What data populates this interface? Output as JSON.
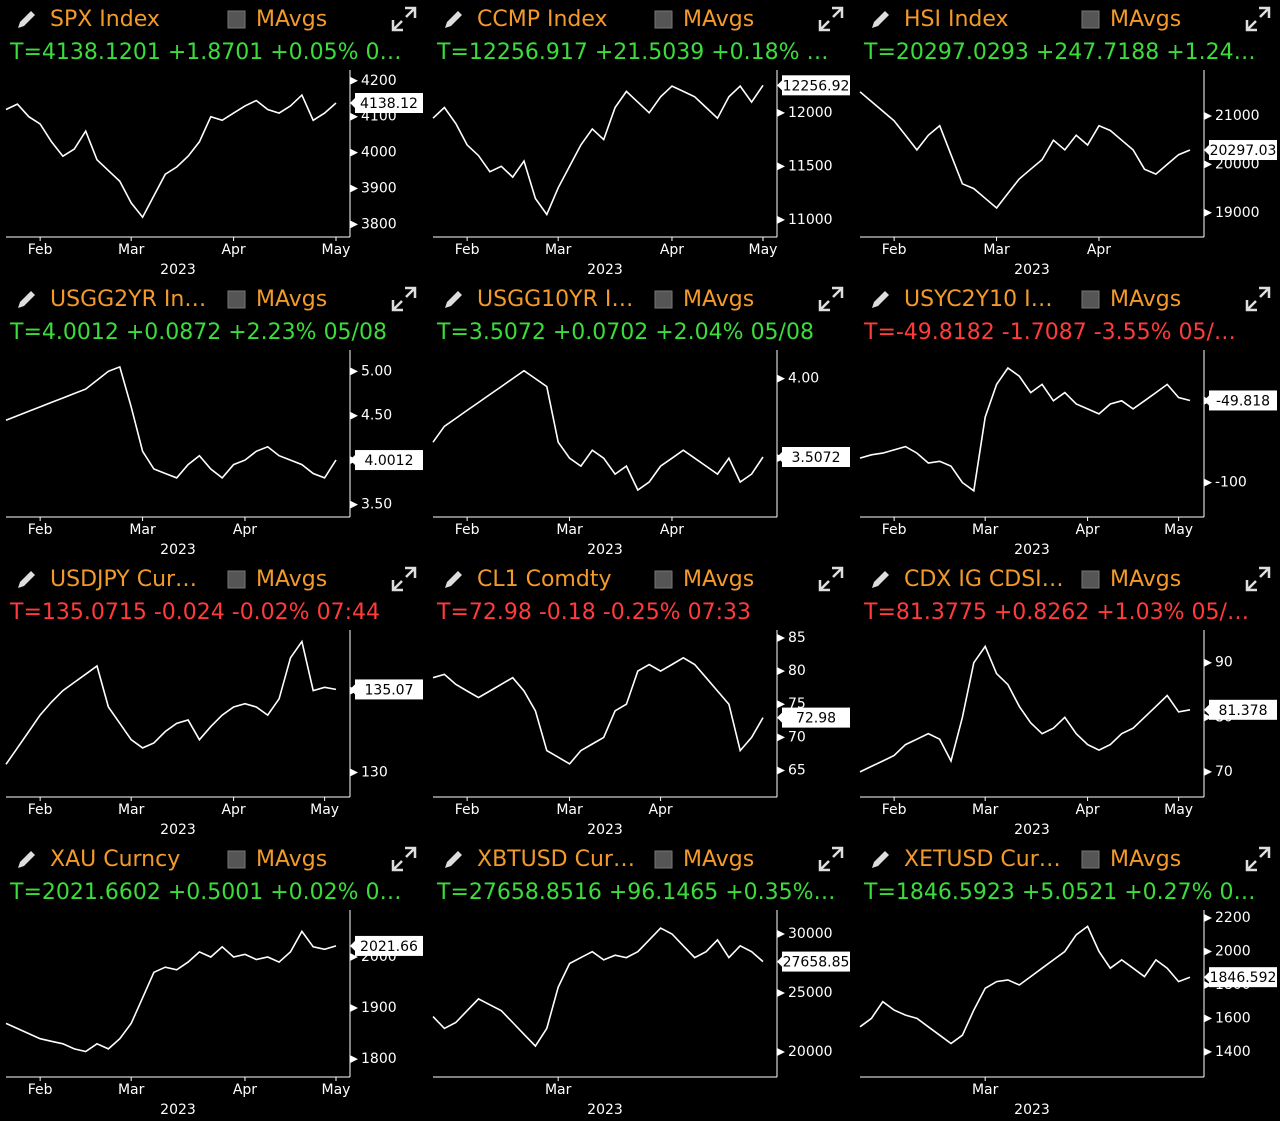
{
  "chart_data": [
    {
      "type": "line",
      "title": "SPX Index",
      "legend": "MAvgs",
      "quote": "T=4138.1201 +1.8701 +0.05% 0…",
      "quote_color": "#3ddc3d",
      "color": "#ffffff",
      "x_label": "2023",
      "categories": [
        null,
        null,
        null,
        "Feb",
        null,
        null,
        null,
        null,
        null,
        null,
        null,
        "Mar",
        null,
        null,
        null,
        null,
        null,
        null,
        null,
        null,
        "Apr",
        null,
        null,
        null,
        null,
        null,
        null,
        null,
        null,
        "May"
      ],
      "values": [
        4120,
        4135,
        4100,
        4080,
        4030,
        3990,
        4010,
        4060,
        3980,
        3950,
        3920,
        3860,
        3820,
        3880,
        3940,
        3960,
        3990,
        4030,
        4100,
        4090,
        4110,
        4130,
        4145,
        4120,
        4110,
        4130,
        4160,
        4090,
        4110,
        4138.12
      ],
      "ylim": [
        3765,
        4230
      ],
      "yticks": [
        3800,
        3900,
        4000,
        4100,
        4200
      ]
    },
    {
      "type": "line",
      "title": "CCMP Index",
      "legend": "MAvgs",
      "quote": "T=12256.917 +21.5039 +0.18% …",
      "quote_color": "#3ddc3d",
      "color": "#ffffff",
      "x_label": "2023",
      "categories": [
        null,
        null,
        null,
        "Feb",
        null,
        null,
        null,
        null,
        null,
        null,
        null,
        "Mar",
        null,
        null,
        null,
        null,
        null,
        null,
        null,
        null,
        null,
        "Apr",
        null,
        null,
        null,
        null,
        null,
        null,
        null,
        "May"
      ],
      "values": [
        11950,
        12050,
        11900,
        11700,
        11600,
        11450,
        11500,
        11400,
        11550,
        11200,
        11050,
        11300,
        11500,
        11700,
        11850,
        11750,
        12050,
        12200,
        12100,
        12000,
        12150,
        12250,
        12200,
        12150,
        12050,
        11950,
        12150,
        12250,
        12100,
        12256.92
      ],
      "ylim": [
        10840,
        12400
      ],
      "yticks": [
        11000,
        11500,
        12000
      ]
    },
    {
      "type": "line",
      "title": "HSI Index",
      "legend": "MAvgs",
      "quote": "T=20297.0293 +247.7188 +1.24…",
      "quote_color": "#3ddc3d",
      "color": "#ffffff",
      "x_label": "2023",
      "categories": [
        null,
        null,
        null,
        "Feb",
        null,
        null,
        null,
        null,
        null,
        null,
        null,
        null,
        "Mar",
        null,
        null,
        null,
        null,
        null,
        null,
        null,
        null,
        "Apr",
        null,
        null,
        null,
        null,
        null,
        null,
        null,
        null
      ],
      "values": [
        21500,
        21300,
        21100,
        20900,
        20600,
        20300,
        20600,
        20800,
        20200,
        19600,
        19500,
        19300,
        19100,
        19400,
        19700,
        19900,
        20100,
        20500,
        20300,
        20600,
        20400,
        20800,
        20700,
        20500,
        20300,
        19900,
        19800,
        20000,
        20200,
        20297.03
      ],
      "ylim": [
        18500,
        21950
      ],
      "yticks": [
        19000,
        20000,
        21000
      ]
    },
    {
      "type": "line",
      "title": "USGG2YR In…",
      "legend": "MAvgs",
      "quote": "T=4.0012 +0.0872 +2.23% 05/08",
      "quote_color": "#3ddc3d",
      "color": "#ffffff",
      "x_label": "2023",
      "categories": [
        null,
        null,
        null,
        "Feb",
        null,
        null,
        null,
        null,
        null,
        null,
        null,
        null,
        "Mar",
        null,
        null,
        null,
        null,
        null,
        null,
        null,
        null,
        "Apr",
        null,
        null,
        null,
        null,
        null,
        null,
        null,
        null
      ],
      "values": [
        4.45,
        4.5,
        4.55,
        4.6,
        4.65,
        4.7,
        4.75,
        4.8,
        4.9,
        5.0,
        5.05,
        4.6,
        4.1,
        3.9,
        3.85,
        3.8,
        3.95,
        4.05,
        3.9,
        3.8,
        3.95,
        4.0,
        4.1,
        4.15,
        4.05,
        4.0,
        3.95,
        3.85,
        3.8,
        4.0012
      ],
      "ylim": [
        3.36,
        5.24
      ],
      "yticks": [
        {
          "value": 3.5,
          "label": "3.50"
        },
        {
          "value": 4,
          "label": "4.00"
        },
        {
          "value": 4.5,
          "label": "4.50"
        },
        {
          "value": 5,
          "label": "5.00"
        }
      ]
    },
    {
      "type": "line",
      "title": "USGG10YR I…",
      "legend": "MAvgs",
      "quote": "T=3.5072 +0.0702 +2.04% 05/08",
      "quote_color": "#3ddc3d",
      "color": "#ffffff",
      "x_label": "2023",
      "categories": [
        null,
        null,
        null,
        "Feb",
        null,
        null,
        null,
        null,
        null,
        null,
        null,
        null,
        "Mar",
        null,
        null,
        null,
        null,
        null,
        null,
        null,
        null,
        "Apr",
        null,
        null,
        null,
        null,
        null,
        null,
        null,
        null
      ],
      "values": [
        3.6,
        3.7,
        3.75,
        3.8,
        3.85,
        3.9,
        3.95,
        4.0,
        4.05,
        4.0,
        3.95,
        3.6,
        3.5,
        3.45,
        3.55,
        3.5,
        3.4,
        3.45,
        3.3,
        3.35,
        3.45,
        3.5,
        3.55,
        3.5,
        3.45,
        3.4,
        3.5,
        3.35,
        3.4,
        3.5072
      ],
      "ylim": [
        3.13,
        4.18
      ],
      "yticks": [
        {
          "value": 3.5,
          "label": "3.50"
        },
        {
          "value": 4,
          "label": "4.00"
        }
      ]
    },
    {
      "type": "line",
      "title": "USYC2Y10 I…",
      "legend": "MAvgs",
      "quote": "T=-49.8182 -1.7087 -3.55% 05/…",
      "quote_color": "#ff3b3b",
      "color": "#ffffff",
      "x_label": "2023",
      "categories": [
        null,
        null,
        null,
        "Feb",
        null,
        null,
        null,
        null,
        null,
        null,
        null,
        "Mar",
        null,
        null,
        null,
        null,
        null,
        null,
        null,
        null,
        "Apr",
        null,
        null,
        null,
        null,
        null,
        null,
        null,
        "May",
        null
      ],
      "values": [
        -85,
        -83,
        -82,
        -80,
        -78,
        -82,
        -88,
        -87,
        -90,
        -100,
        -105,
        -60,
        -40,
        -30,
        -35,
        -45,
        -40,
        -50,
        -45,
        -52,
        -55,
        -58,
        -52,
        -50,
        -55,
        -50,
        -45,
        -40,
        -48,
        -49.818
      ],
      "ylim": [
        -121,
        -19
      ],
      "yticks": [
        -100,
        -50
      ]
    },
    {
      "type": "line",
      "title": "USDJPY Cur…",
      "legend": "MAvgs",
      "quote": "T=135.0715 -0.024 -0.02% 07:44",
      "quote_color": "#ff3b3b",
      "color": "#ffffff",
      "x_label": "2023",
      "categories": [
        null,
        null,
        null,
        "Feb",
        null,
        null,
        null,
        null,
        null,
        null,
        null,
        "Mar",
        null,
        null,
        null,
        null,
        null,
        null,
        null,
        null,
        "Apr",
        null,
        null,
        null,
        null,
        null,
        null,
        null,
        "May",
        null
      ],
      "values": [
        130.5,
        131.5,
        132.5,
        133.5,
        134.3,
        135,
        135.5,
        136,
        136.5,
        134,
        133,
        132,
        131.5,
        131.8,
        132.5,
        133,
        133.2,
        132,
        132.8,
        133.5,
        134,
        134.2,
        134,
        133.5,
        134.5,
        137,
        138,
        135,
        135.2,
        135.07
      ],
      "ylim": [
        128.5,
        138.7
      ],
      "yticks": [
        130,
        135
      ]
    },
    {
      "type": "line",
      "title": "CL1 Comdty",
      "legend": "MAvgs",
      "quote": "T=72.98 -0.18 -0.25% 07:33",
      "quote_color": "#ff3b3b",
      "color": "#ffffff",
      "x_label": "2023",
      "categories": [
        null,
        null,
        null,
        "Feb",
        null,
        null,
        null,
        null,
        null,
        null,
        null,
        null,
        "Mar",
        null,
        null,
        null,
        null,
        null,
        null,
        null,
        "Apr",
        null,
        null,
        null,
        null,
        null,
        null,
        null,
        null,
        null
      ],
      "values": [
        79,
        79.5,
        78,
        77,
        76,
        77,
        78,
        79,
        77,
        74,
        68,
        67,
        66,
        68,
        69,
        70,
        74,
        75,
        80,
        81,
        80,
        81,
        82,
        81,
        79,
        77,
        75,
        68,
        70,
        72.98
      ],
      "ylim": [
        61,
        86.2
      ],
      "yticks": [
        65,
        70,
        75,
        80,
        85
      ]
    },
    {
      "type": "line",
      "title": "CDX IG CDSI…",
      "legend": "MAvgs",
      "quote": "T=81.3775 +0.8262 +1.03% 05/…",
      "quote_color": "#ff3b3b",
      "color": "#ffffff",
      "x_label": "2023",
      "categories": [
        null,
        null,
        null,
        "Feb",
        null,
        null,
        null,
        null,
        null,
        null,
        null,
        "Mar",
        null,
        null,
        null,
        null,
        null,
        null,
        null,
        null,
        "Apr",
        null,
        null,
        null,
        null,
        null,
        null,
        null,
        "May",
        null
      ],
      "values": [
        70,
        71,
        72,
        73,
        75,
        76,
        77,
        76,
        72,
        80,
        90,
        93,
        88,
        86,
        82,
        79,
        77,
        78,
        80,
        77,
        75,
        74,
        75,
        77,
        78,
        80,
        82,
        84,
        81,
        81.378
      ],
      "ylim": [
        65.4,
        96
      ],
      "yticks": [
        70,
        80,
        90
      ]
    },
    {
      "type": "line",
      "title": "XAU Curncy",
      "legend": "MAvgs",
      "quote": "T=2021.6602 +0.5001 +0.02% 0…",
      "quote_color": "#3ddc3d",
      "color": "#ffffff",
      "x_label": "2023",
      "categories": [
        null,
        null,
        null,
        "Feb",
        null,
        null,
        null,
        null,
        null,
        null,
        null,
        "Mar",
        null,
        null,
        null,
        null,
        null,
        null,
        null,
        null,
        null,
        "Apr",
        null,
        null,
        null,
        null,
        null,
        null,
        null,
        "May"
      ],
      "values": [
        1870,
        1860,
        1850,
        1840,
        1835,
        1830,
        1820,
        1815,
        1830,
        1820,
        1840,
        1870,
        1920,
        1970,
        1980,
        1975,
        1990,
        2010,
        2000,
        2020,
        2000,
        2005,
        1995,
        2000,
        1990,
        2010,
        2050,
        2020,
        2015,
        2021.66
      ],
      "ylim": [
        1765,
        2092
      ],
      "yticks": [
        1800,
        1900,
        2000
      ]
    },
    {
      "type": "line",
      "title": "XBTUSD Cur…",
      "legend": "MAvgs",
      "quote": "T=27658.8516 +96.1465 +0.35%…",
      "quote_color": "#3ddc3d",
      "color": "#ffffff",
      "x_label": "2023",
      "categories": [
        null,
        null,
        null,
        null,
        null,
        null,
        null,
        null,
        null,
        null,
        null,
        "Mar",
        null,
        null,
        null,
        null,
        null,
        null,
        null,
        null,
        null,
        null,
        null,
        null,
        null,
        null,
        null,
        null,
        null,
        null
      ],
      "values": [
        23000,
        22000,
        22500,
        23500,
        24500,
        24000,
        23500,
        22500,
        21500,
        20500,
        22000,
        25500,
        27500,
        28000,
        28500,
        27800,
        28200,
        28000,
        28500,
        29500,
        30500,
        30000,
        29000,
        28000,
        28500,
        29500,
        28000,
        29000,
        28500,
        27658.85
      ],
      "ylim": [
        17880,
        32030
      ],
      "yticks": [
        20000,
        25000,
        30000
      ]
    },
    {
      "type": "line",
      "title": "XETUSD Cur…",
      "legend": "MAvgs",
      "quote": "T=1846.5923 +5.0521 +0.27% 0…",
      "quote_color": "#3ddc3d",
      "color": "#ffffff",
      "x_label": "2023",
      "categories": [
        null,
        null,
        null,
        null,
        null,
        null,
        null,
        null,
        null,
        null,
        null,
        "Mar",
        null,
        null,
        null,
        null,
        null,
        null,
        null,
        null,
        null,
        null,
        null,
        null,
        null,
        null,
        null,
        null,
        null,
        null
      ],
      "values": [
        1550,
        1600,
        1700,
        1650,
        1620,
        1600,
        1550,
        1500,
        1450,
        1500,
        1650,
        1780,
        1820,
        1830,
        1800,
        1850,
        1900,
        1950,
        2000,
        2100,
        2150,
        2000,
        1900,
        1950,
        1900,
        1850,
        1950,
        1900,
        1820,
        1846.592
      ],
      "ylim": [
        1250,
        2248
      ],
      "yticks": [
        1400,
        1600,
        1800,
        2000,
        2200
      ]
    }
  ]
}
